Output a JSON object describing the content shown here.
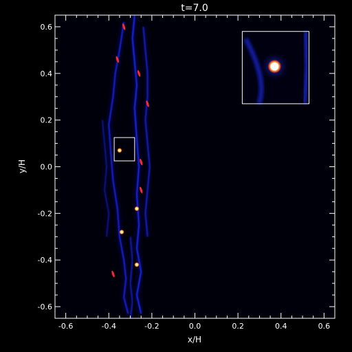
{
  "chart_data": {
    "type": "heatmap",
    "title": "t=7.0",
    "xlabel": "x/H",
    "ylabel": "y/H",
    "xlim": [
      -0.65,
      0.65
    ],
    "ylim": [
      -0.65,
      0.65
    ],
    "xticks": [
      -0.6,
      -0.4,
      -0.2,
      0.0,
      0.2,
      0.4,
      0.6
    ],
    "xtick_labels": [
      "-0.6",
      "-0.4",
      "-0.2",
      "0.0",
      "0.2",
      "0.4",
      "0.6"
    ],
    "yticks": [
      -0.6,
      -0.4,
      -0.2,
      0.0,
      0.2,
      0.4,
      0.6
    ],
    "ytick_labels": [
      "-0.6",
      "-0.4",
      "-0.2",
      "0.0",
      "0.2",
      "0.4",
      "0.6"
    ],
    "grid": false,
    "colormap": [
      "#000000",
      "#0a0a55",
      "#1a2cff",
      "#ff1a1a",
      "#ffff66",
      "#ffffff"
    ],
    "filaments": [
      {
        "x": [
          -0.33,
          -0.35,
          -0.37,
          -0.38,
          -0.4,
          -0.39,
          -0.38,
          -0.36,
          -0.35,
          -0.33,
          -0.32,
          -0.33,
          -0.31
        ],
        "y": [
          0.62,
          0.5,
          0.4,
          0.3,
          0.18,
          0.05,
          -0.06,
          -0.18,
          -0.3,
          -0.4,
          -0.48,
          -0.56,
          -0.63
        ],
        "intensity": 0.8
      },
      {
        "x": [
          -0.28,
          -0.29,
          -0.28,
          -0.27,
          -0.28,
          -0.27,
          -0.26,
          -0.27,
          -0.26,
          -0.27,
          -0.25,
          -0.27,
          -0.25
        ],
        "y": [
          0.65,
          0.55,
          0.45,
          0.35,
          0.25,
          0.12,
          0.0,
          -0.12,
          -0.25,
          -0.35,
          -0.45,
          -0.55,
          -0.63
        ],
        "intensity": 0.9
      },
      {
        "x": [
          -0.24,
          -0.23,
          -0.22,
          -0.22,
          -0.23,
          -0.22,
          -0.21,
          -0.22,
          -0.23,
          -0.22
        ],
        "y": [
          0.6,
          0.5,
          0.4,
          0.3,
          0.2,
          0.1,
          0.0,
          -0.1,
          -0.2,
          -0.3
        ],
        "intensity": 0.7
      },
      {
        "x": [
          -0.43,
          -0.42,
          -0.41,
          -0.42,
          -0.4,
          -0.41
        ],
        "y": [
          0.2,
          0.1,
          0.0,
          -0.1,
          -0.2,
          -0.3
        ],
        "intensity": 0.45
      },
      {
        "x": [
          -0.3,
          -0.29,
          -0.3,
          -0.29,
          -0.3
        ],
        "y": [
          -0.3,
          -0.4,
          -0.5,
          -0.58,
          -0.65
        ],
        "intensity": 0.6
      }
    ],
    "hot_spots": [
      {
        "x": -0.33,
        "y": 0.6,
        "kind": "streak"
      },
      {
        "x": -0.36,
        "y": 0.46,
        "kind": "streak"
      },
      {
        "x": -0.26,
        "y": 0.4,
        "kind": "streak"
      },
      {
        "x": -0.22,
        "y": 0.27,
        "kind": "streak"
      },
      {
        "x": -0.25,
        "y": 0.02,
        "kind": "streak"
      },
      {
        "x": -0.25,
        "y": -0.1,
        "kind": "streak"
      },
      {
        "x": -0.38,
        "y": -0.46,
        "kind": "streak"
      },
      {
        "x": -0.35,
        "y": 0.07,
        "kind": "clump"
      },
      {
        "x": -0.27,
        "y": -0.18,
        "kind": "clump"
      },
      {
        "x": -0.34,
        "y": -0.28,
        "kind": "clump"
      },
      {
        "x": -0.27,
        "y": -0.42,
        "kind": "clump"
      }
    ],
    "zoom_box": {
      "x": [
        -0.375,
        -0.28
      ],
      "y": [
        0.025,
        0.125
      ]
    },
    "inset": {
      "x": [
        0.22,
        0.53
      ],
      "y": [
        0.27,
        0.58
      ],
      "clump": {
        "x": 0.37,
        "y": 0.43
      }
    }
  }
}
